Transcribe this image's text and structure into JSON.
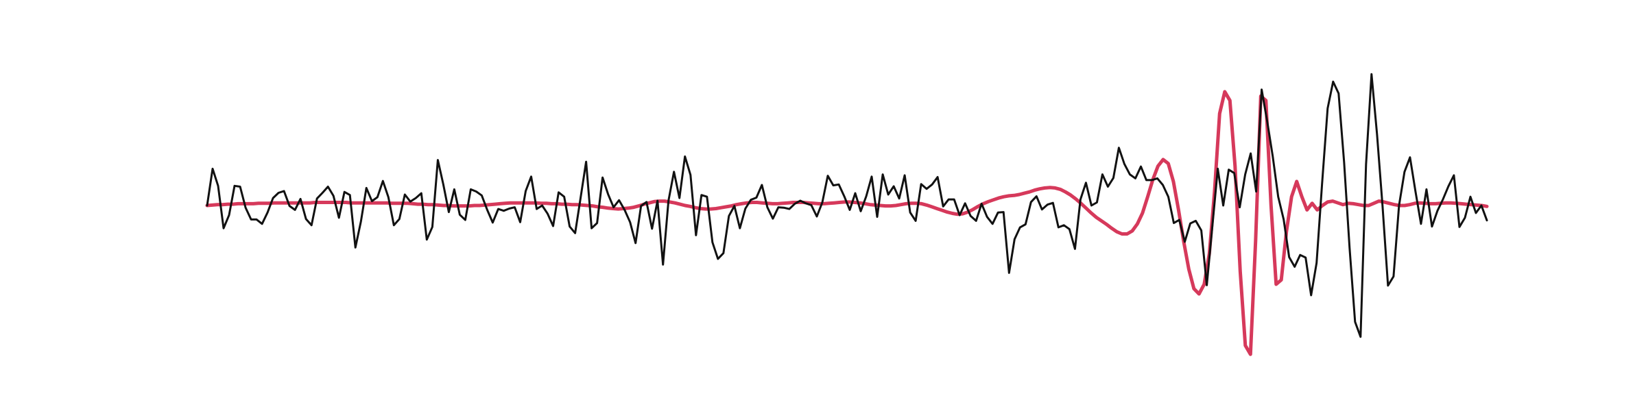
{
  "chart_data": {
    "type": "line",
    "grid": false,
    "axes_visible": false,
    "legend": "none",
    "ylim": [
      -3.6,
      3.6
    ],
    "xlim": [
      0,
      237
    ],
    "series": [
      {
        "color": "#111111",
        "values": [
          0.0,
          0.84,
          0.45,
          -0.52,
          -0.22,
          0.45,
          0.43,
          -0.05,
          -0.32,
          -0.32,
          -0.42,
          -0.16,
          0.17,
          0.29,
          0.33,
          -0.01,
          -0.1,
          0.15,
          -0.31,
          -0.45,
          0.16,
          0.29,
          0.43,
          0.22,
          -0.28,
          0.31,
          0.24,
          -0.96,
          -0.37,
          0.4,
          0.1,
          0.19,
          0.56,
          0.19,
          -0.45,
          -0.31,
          0.25,
          0.09,
          0.17,
          0.28,
          -0.78,
          -0.49,
          1.04,
          0.48,
          -0.15,
          0.37,
          -0.21,
          -0.33,
          0.37,
          0.32,
          0.23,
          -0.1,
          -0.39,
          -0.08,
          -0.12,
          -0.07,
          -0.04,
          -0.38,
          0.33,
          0.66,
          -0.08,
          0.0,
          -0.19,
          -0.47,
          0.3,
          0.2,
          -0.48,
          -0.63,
          0.18,
          1.0,
          -0.52,
          -0.4,
          0.64,
          0.26,
          -0.04,
          0.12,
          -0.1,
          -0.38,
          -0.86,
          -0.01,
          0.08,
          -0.53,
          0.11,
          -1.35,
          0.11,
          0.77,
          0.17,
          1.12,
          0.7,
          -0.68,
          0.24,
          0.2,
          -0.84,
          -1.22,
          -1.09,
          -0.24,
          -0.01,
          -0.52,
          -0.07,
          0.13,
          0.18,
          0.47,
          -0.04,
          -0.3,
          -0.04,
          -0.05,
          -0.08,
          0.04,
          0.11,
          0.05,
          0.01,
          -0.25,
          0.07,
          0.68,
          0.46,
          0.48,
          0.21,
          -0.1,
          0.28,
          -0.13,
          0.21,
          0.66,
          -0.26,
          0.71,
          0.25,
          0.44,
          0.16,
          0.69,
          -0.16,
          -0.35,
          0.49,
          0.38,
          0.48,
          0.65,
          -0.02,
          0.14,
          0.14,
          -0.22,
          0.05,
          -0.24,
          -0.35,
          0.04,
          -0.26,
          -0.42,
          -0.16,
          -0.15,
          -1.54,
          -0.77,
          -0.5,
          -0.43,
          0.08,
          0.21,
          -0.09,
          0.02,
          0.06,
          -0.5,
          -0.45,
          -0.54,
          -0.99,
          0.14,
          0.52,
          0.0,
          0.07,
          0.71,
          0.43,
          0.63,
          1.32,
          0.95,
          0.71,
          0.62,
          0.89,
          0.58,
          0.58,
          0.62,
          0.47,
          0.2,
          -0.4,
          -0.33,
          -0.83,
          -0.41,
          -0.35,
          -0.57,
          -1.82,
          -0.49,
          0.84,
          0.0,
          0.82,
          0.74,
          -0.04,
          0.71,
          1.19,
          0.32,
          2.65,
          1.92,
          1.13,
          0.2,
          -0.32,
          -1.18,
          -1.4,
          -1.13,
          -1.19,
          -2.05,
          -1.31,
          0.5,
          2.22,
          2.83,
          2.56,
          0.99,
          -0.97,
          -2.66,
          -3.0,
          0.94,
          3.0,
          1.63,
          0.0,
          -1.83,
          -1.62,
          0.0,
          0.77,
          1.1,
          0.32,
          -0.42,
          0.37,
          -0.48,
          -0.12,
          0.14,
          0.44,
          0.69,
          -0.49,
          -0.28,
          0.2,
          -0.17,
          0.0,
          -0.34
        ]
      },
      {
        "color": "#d6395b",
        "values": [
          0.0,
          0.01,
          0.02,
          0.02,
          0.03,
          0.03,
          0.04,
          0.04,
          0.04,
          0.04,
          0.05,
          0.05,
          0.05,
          0.06,
          0.06,
          0.06,
          0.06,
          0.06,
          0.06,
          0.06,
          0.06,
          0.07,
          0.07,
          0.07,
          0.07,
          0.07,
          0.07,
          0.07,
          0.06,
          0.06,
          0.06,
          0.06,
          0.06,
          0.06,
          0.06,
          0.06,
          0.05,
          0.05,
          0.05,
          0.05,
          0.04,
          0.03,
          0.03,
          0.02,
          0.02,
          0.01,
          0.0,
          0.0,
          -0.01,
          -0.01,
          -0.01,
          -0.01,
          0.0,
          0.0,
          0.01,
          0.02,
          0.03,
          0.04,
          0.05,
          0.06,
          0.06,
          0.06,
          0.06,
          0.06,
          0.06,
          0.05,
          0.05,
          0.04,
          0.04,
          0.03,
          0.03,
          0.02,
          0.02,
          0.01,
          0.0,
          -0.01,
          -0.03,
          -0.04,
          -0.06,
          -0.07,
          -0.08,
          -0.07,
          -0.06,
          -0.04,
          -0.01,
          0.03,
          0.06,
          0.09,
          0.1,
          0.1,
          0.08,
          0.06,
          0.03,
          0.0,
          -0.02,
          -0.05,
          -0.07,
          -0.08,
          -0.08,
          -0.07,
          -0.05,
          -0.03,
          -0.01,
          0.02,
          0.04,
          0.06,
          0.07,
          0.07,
          0.06,
          0.05,
          0.04,
          0.04,
          0.05,
          0.06,
          0.07,
          0.07,
          0.07,
          0.06,
          0.05,
          0.04,
          0.04,
          0.05,
          0.06,
          0.07,
          0.08,
          0.08,
          0.07,
          0.06,
          0.04,
          0.02,
          0.01,
          0.0,
          -0.01,
          -0.01,
          0.0,
          0.02,
          0.04,
          0.05,
          0.05,
          0.04,
          0.01,
          -0.03,
          -0.07,
          -0.11,
          -0.15,
          -0.18,
          -0.2,
          -0.19,
          -0.15,
          -0.09,
          -0.02,
          0.04,
          0.09,
          0.13,
          0.17,
          0.2,
          0.22,
          0.23,
          0.25,
          0.28,
          0.31,
          0.35,
          0.38,
          0.4,
          0.41,
          0.4,
          0.37,
          0.31,
          0.24,
          0.15,
          0.05,
          -0.06,
          -0.17,
          -0.27,
          -0.35,
          -0.43,
          -0.52,
          -0.6,
          -0.65,
          -0.65,
          -0.58,
          -0.42,
          -0.17,
          0.2,
          0.59,
          0.9,
          1.05,
          0.96,
          0.55,
          -0.1,
          -0.82,
          -1.45,
          -1.9,
          -2.02,
          -1.8,
          -1.1,
          0.3,
          2.1,
          2.6,
          2.4,
          0.9,
          -1.5,
          -3.2,
          -3.4,
          -0.8,
          2.5,
          2.4,
          0.0,
          -1.8,
          -1.7,
          -0.6,
          0.2,
          0.55,
          0.2,
          -0.1,
          0.05,
          -0.1,
          0.0,
          0.08,
          0.1,
          0.06,
          0.02,
          0.05,
          0.04,
          0.02,
          0.0,
          0.0,
          0.05,
          0.1,
          0.08,
          0.05,
          0.02,
          0.0,
          0.0,
          0.02,
          0.05,
          0.06,
          0.05,
          0.04,
          0.04,
          0.05,
          0.06,
          0.06,
          0.05,
          0.04,
          0.03,
          0.02,
          0.01,
          0.0,
          -0.02
        ]
      }
    ]
  }
}
